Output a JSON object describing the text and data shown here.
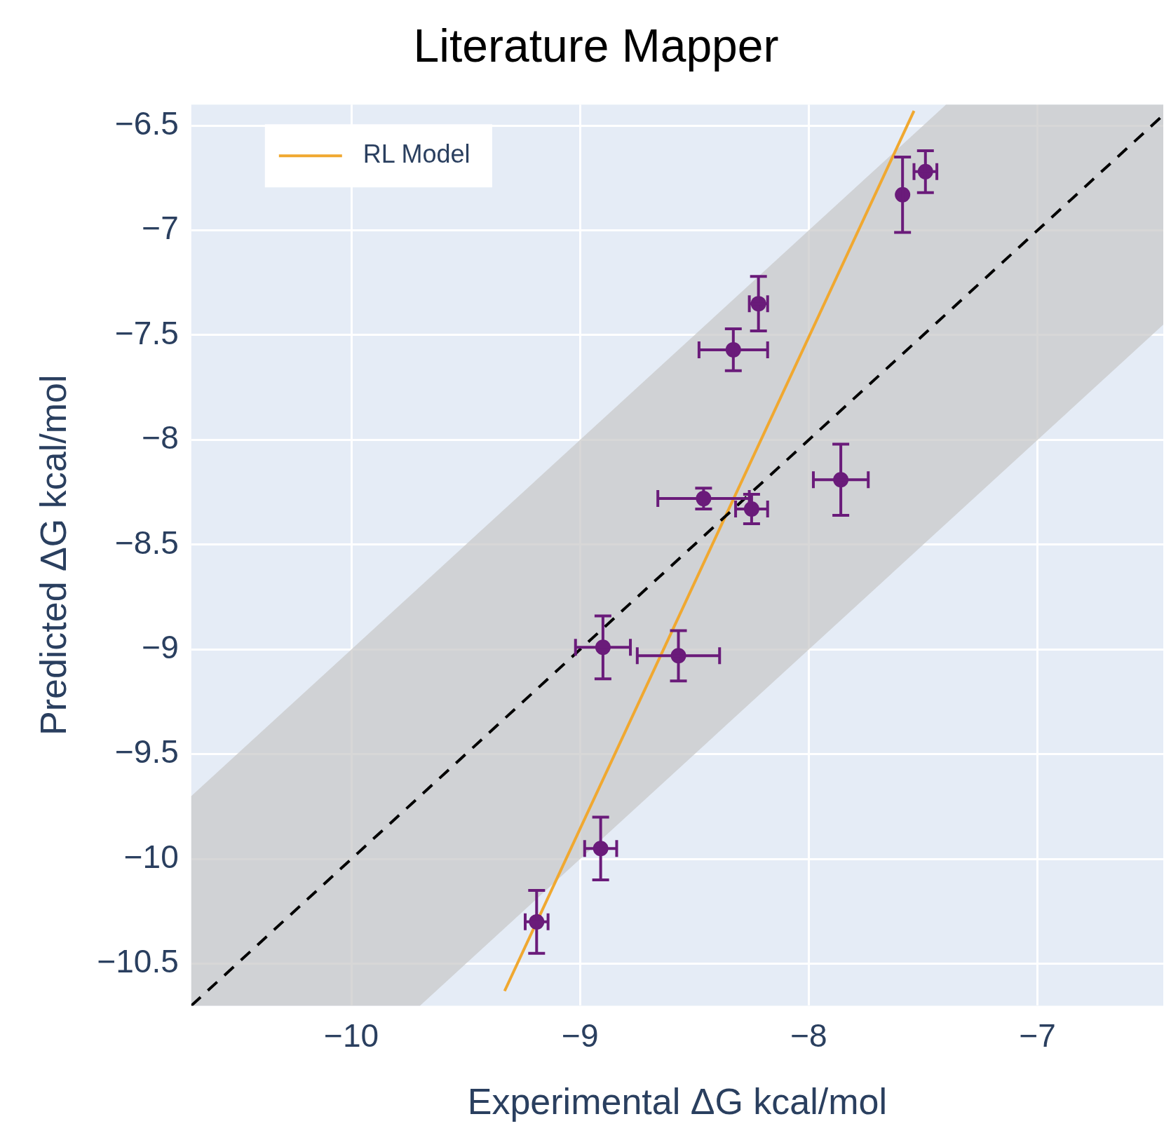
{
  "chart_data": {
    "type": "scatter",
    "title": "Literature Mapper",
    "xlabel": "Experimental ΔG kcal/mol",
    "ylabel": "Predicted ΔG kcal/mol",
    "xlim": [
      -10.7,
      -6.45
    ],
    "ylim": [
      -10.7,
      -6.4
    ],
    "xticks": [
      {
        "value": -10,
        "label": "−10"
      },
      {
        "value": -9,
        "label": "−9"
      },
      {
        "value": -8,
        "label": "−8"
      },
      {
        "value": -7,
        "label": "−7"
      }
    ],
    "yticks": [
      {
        "value": -10.5,
        "label": "−10.5"
      },
      {
        "value": -10,
        "label": "−10"
      },
      {
        "value": -9.5,
        "label": "−9.5"
      },
      {
        "value": -9,
        "label": "−9"
      },
      {
        "value": -8.5,
        "label": "−8.5"
      },
      {
        "value": -8,
        "label": "−8"
      },
      {
        "value": -7.5,
        "label": "−7.5"
      },
      {
        "value": -7,
        "label": "−7"
      },
      {
        "value": -6.5,
        "label": "−6.5"
      }
    ],
    "grid": true,
    "legend": "top left",
    "series": [
      {
        "type": "line",
        "color": "#000000",
        "line_style": "dashed",
        "marker": "none",
        "x": [
          -10.7,
          -9.7,
          -7.4,
          -6.45
        ],
        "values": [
          -10.7,
          -9.7,
          -7.4,
          -6.45
        ],
        "lower": [
          -10.7,
          -10.7,
          -8.4,
          -7.45
        ],
        "upper": [
          -9.7,
          -8.7,
          -6.4,
          -6.4
        ]
      },
      {
        "type": "line",
        "name": "RL Model",
        "color": "#f0a830",
        "line_style": "solid",
        "marker": "none",
        "x": [
          -9.33,
          -7.54
        ],
        "values": [
          -10.63,
          -6.43
        ]
      },
      {
        "color": "#6a1b7a",
        "marker": "circle",
        "x": [
          -7.59,
          -7.49,
          -8.22,
          -8.33,
          -7.86,
          -8.46,
          -8.25,
          -8.9,
          -8.57,
          -8.91,
          -9.19
        ],
        "values": [
          -6.83,
          -6.72,
          -7.35,
          -7.57,
          -8.19,
          -8.28,
          -8.33,
          -8.99,
          -9.03,
          -9.95,
          -10.3
        ],
        "errors": [
          0.18,
          0.1,
          0.13,
          0.1,
          0.17,
          0.05,
          0.07,
          0.15,
          0.12,
          0.15,
          0.15
        ],
        "xerrors": [
          null,
          0.05,
          0.04,
          0.15,
          0.12,
          0.2,
          0.07,
          0.12,
          0.18,
          0.07,
          0.05
        ]
      }
    ]
  }
}
